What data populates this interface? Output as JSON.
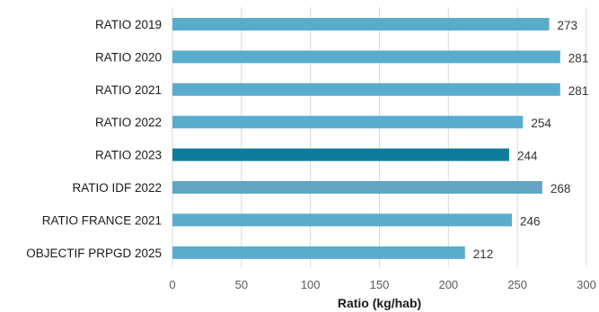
{
  "chart_data": {
    "type": "bar",
    "orientation": "horizontal",
    "title": "",
    "xlabel": "Ratio (kg/hab)",
    "ylabel": "",
    "xlim": [
      0,
      300
    ],
    "xticks": [
      "0",
      "50",
      "100",
      "150",
      "200",
      "250",
      "300"
    ],
    "grid": "vertical",
    "legend": "none",
    "categories": [
      "RATIO 2019",
      "RATIO 2020",
      "RATIO 2021",
      "RATIO 2022",
      "RATIO 2023",
      "RATIO IDF 2022",
      "RATIO FRANCE 2021",
      "OBJECTIF PRPGD 2025"
    ],
    "values": [
      273,
      281,
      281,
      254,
      244,
      268,
      246,
      212
    ],
    "value_labels": [
      "273",
      "281",
      "281",
      "254",
      "244",
      "268",
      "246",
      "212"
    ],
    "colors": [
      "#5aaccd",
      "#5aaccd",
      "#5aaccd",
      "#5aaccd",
      "#0d7d9a",
      "#62a5c3",
      "#5aaccd",
      "#5aaccd"
    ],
    "grid_color": "#d9d9d9"
  }
}
